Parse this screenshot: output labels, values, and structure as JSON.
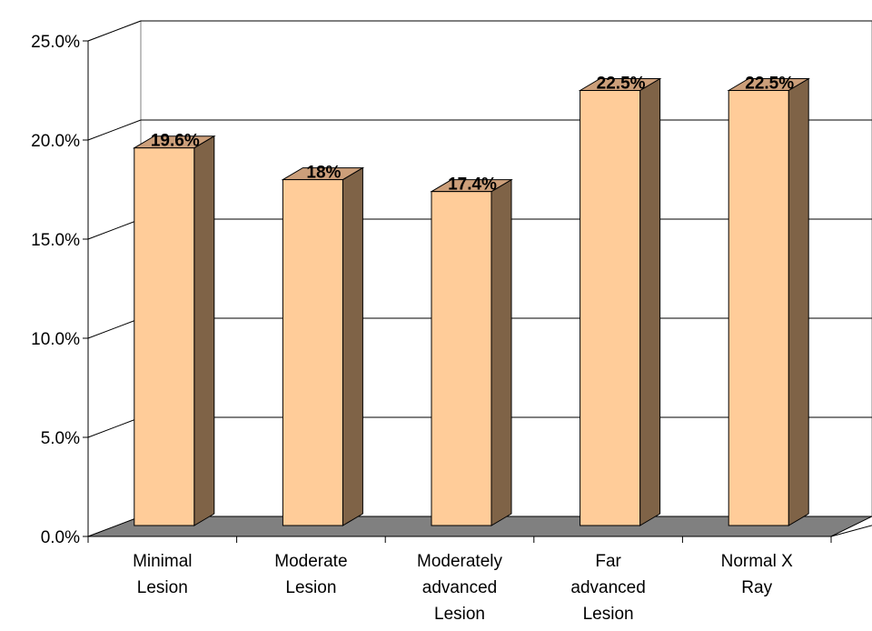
{
  "chart_data": {
    "type": "bar",
    "style": "3d-column",
    "categories": [
      [
        "Minimal",
        "Lesion"
      ],
      [
        "Moderate",
        "Lesion"
      ],
      [
        "Moderately",
        "advanced",
        "Lesion"
      ],
      [
        "Far",
        "advanced",
        "Lesion"
      ],
      [
        "Normal X",
        "Ray"
      ]
    ],
    "values": [
      19.6,
      18.0,
      17.4,
      22.5,
      22.5
    ],
    "data_labels": [
      "19.6%",
      "18%",
      "17.4%",
      "22.5%",
      "22.5%"
    ],
    "yticks": [
      "0.0%",
      "5.0%",
      "10.0%",
      "15.0%",
      "20.0%",
      "25.0%"
    ],
    "ylim": [
      0,
      25
    ],
    "grid": true,
    "legend": "none",
    "colors": {
      "bar_front": "#FFCC99",
      "bar_side": "#7F6347",
      "bar_top": "#CC9F7A",
      "floor": "#808080",
      "grid": "#000000",
      "walls": "#ffffff"
    }
  }
}
